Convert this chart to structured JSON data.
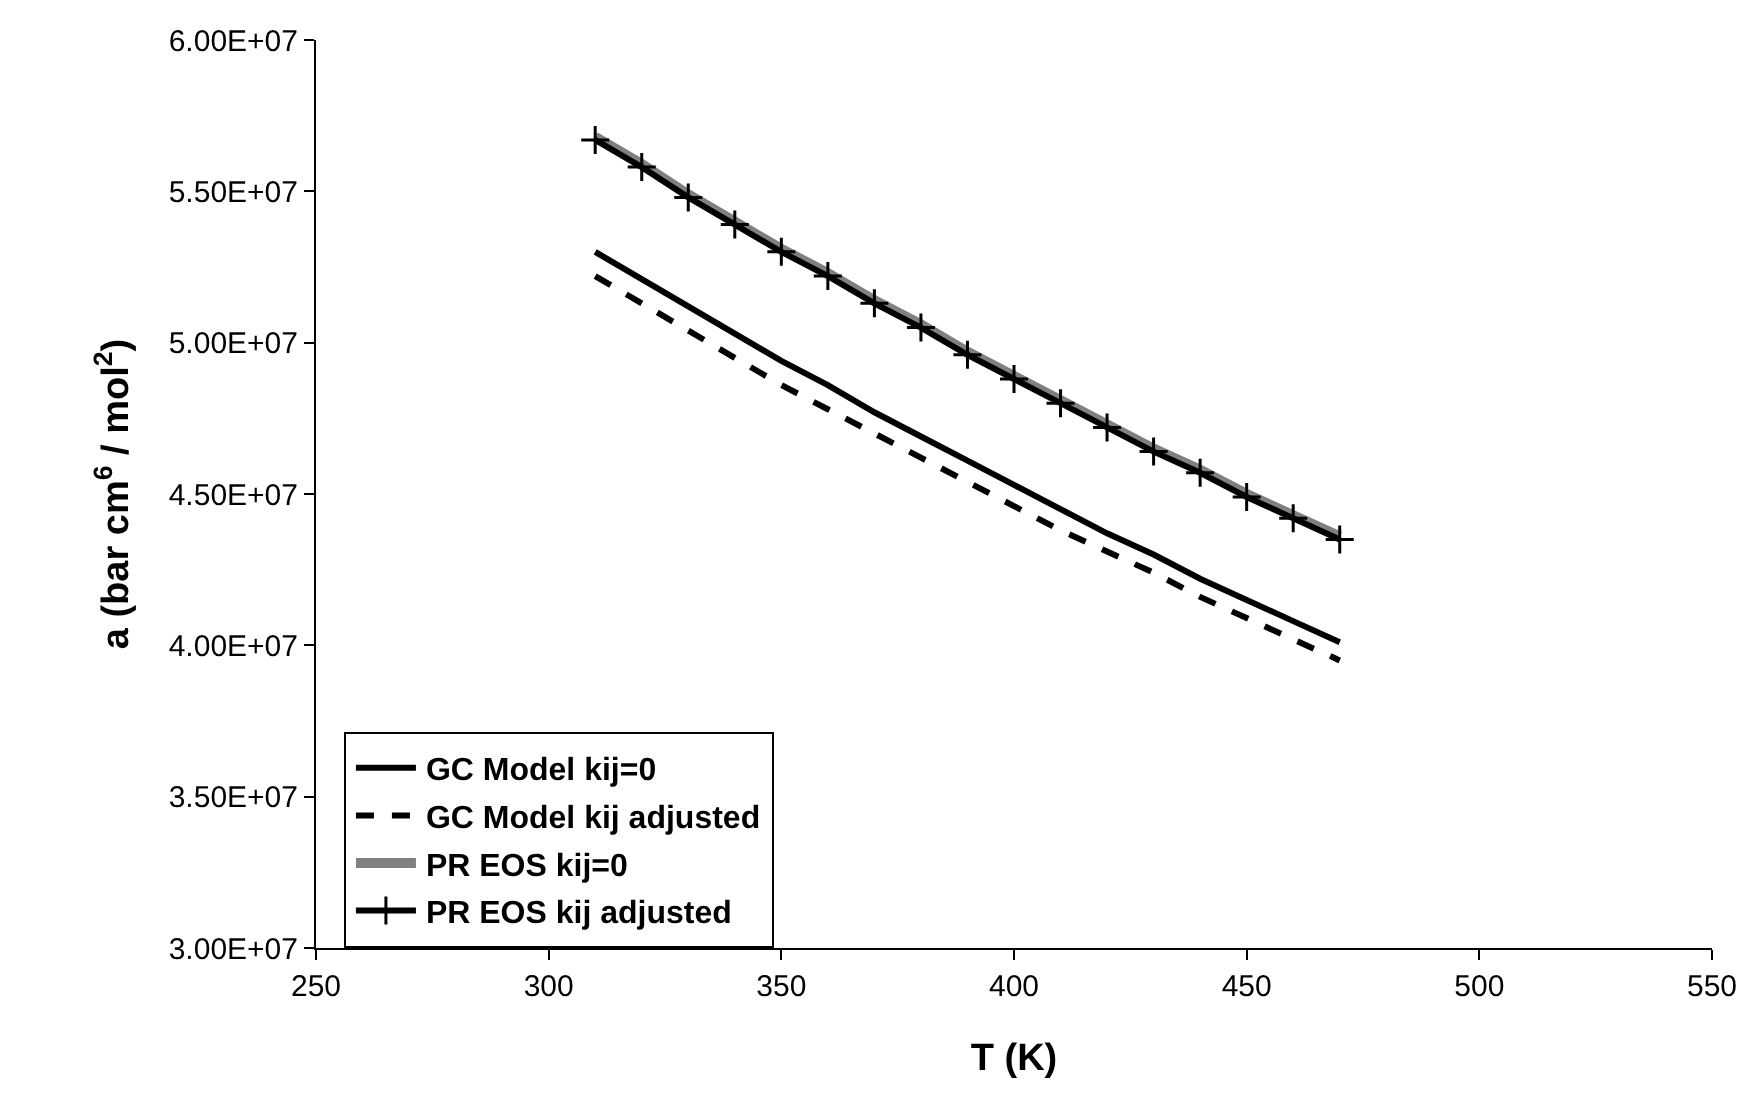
{
  "chart_data": {
    "type": "line",
    "xlabel": "T (K)",
    "ylabel": "a (bar cm$^{6}$ / mol$^{2}$)",
    "x": [
      310,
      320,
      330,
      340,
      350,
      360,
      370,
      380,
      390,
      400,
      410,
      420,
      430,
      440,
      450,
      460,
      470
    ],
    "series": [
      {
        "name": "GC Model kij=0",
        "color": "#000000",
        "line_style": "solid",
        "marker": "none",
        "values": [
          53000000,
          52100000,
          51200000,
          50300000,
          49400000,
          48600000,
          47700000,
          46900000,
          46100000,
          45300000,
          44500000,
          43700000,
          43000000,
          42200000,
          41500000,
          40800000,
          40100000
        ]
      },
      {
        "name": "GC Model kij adjusted",
        "color": "#000000",
        "line_style": "dashed",
        "marker": "none",
        "values": [
          52200000,
          51300000,
          50400000,
          49500000,
          48600000,
          47800000,
          47000000,
          46200000,
          45400000,
          44600000,
          43800000,
          43100000,
          42400000,
          41600000,
          40900000,
          40200000,
          39500000
        ]
      },
      {
        "name": "PR EOS kij=0",
        "color": "#808080",
        "line_style": "solid",
        "marker": "none",
        "values": [
          56800000,
          55900000,
          54900000,
          54000000,
          53100000,
          52300000,
          51400000,
          50600000,
          49700000,
          48900000,
          48100000,
          47300000,
          46500000,
          45800000,
          45000000,
          44300000,
          43600000
        ]
      },
      {
        "name": "PR EOS kij adjusted",
        "color": "#000000",
        "line_style": "solid",
        "marker": "cross",
        "values": [
          56700000,
          55800000,
          54800000,
          53900000,
          53000000,
          52200000,
          51300000,
          50500000,
          49600000,
          48800000,
          48000000,
          47200000,
          46400000,
          45700000,
          44900000,
          44200000,
          43500000
        ]
      }
    ],
    "xlim": [
      250,
      550
    ],
    "xticks": [
      250,
      300,
      350,
      400,
      450,
      500,
      550
    ],
    "ylim": [
      30000000,
      60000000
    ],
    "yticks": [
      {
        "value": 30000000,
        "label": "3.00E+07"
      },
      {
        "value": 35000000,
        "label": "3.50E+07"
      },
      {
        "value": 40000000,
        "label": "4.00E+07"
      },
      {
        "value": 45000000,
        "label": "4.50E+07"
      },
      {
        "value": 50000000,
        "label": "5.00E+07"
      },
      {
        "value": 55000000,
        "label": "5.50E+07"
      },
      {
        "value": 60000000,
        "label": "6.00E+07"
      }
    ],
    "grid": false,
    "legend": "bottom left"
  }
}
